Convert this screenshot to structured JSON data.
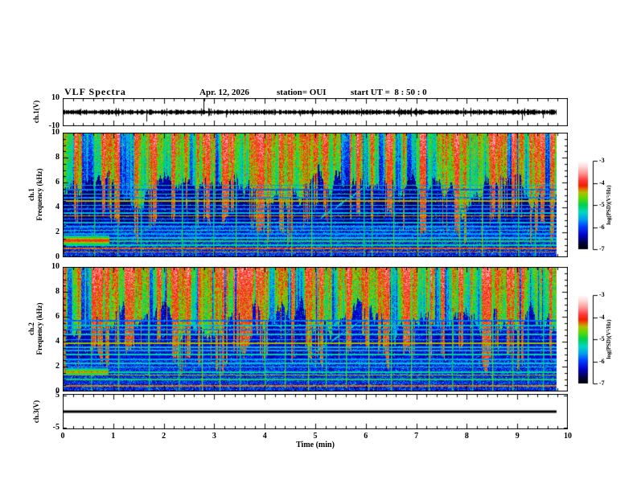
{
  "header": {
    "title": "VLF Spectra",
    "date": "Apr. 12, 2026",
    "station": "station= OUI",
    "start_ut": "start UT =  8 : 50 : 0"
  },
  "time_axis": {
    "label": "Time (min)",
    "ticks": [
      0,
      1,
      2,
      3,
      4,
      5,
      6,
      7,
      8,
      9,
      10
    ],
    "range": [
      0,
      10
    ],
    "minor_ticks_per_major": 5,
    "data_end_min": 9.78
  },
  "colorbar": {
    "label": "log(PSD)(V²/Hz)",
    "ticks": [
      -3,
      -4,
      -5,
      -6,
      -7
    ],
    "range": [
      -7,
      -3
    ],
    "stops": [
      [
        0,
        "#000000"
      ],
      [
        0.07,
        "#000040"
      ],
      [
        0.16,
        "#0000c8"
      ],
      [
        0.26,
        "#0040ff"
      ],
      [
        0.34,
        "#00a0f0"
      ],
      [
        0.42,
        "#00d8c0"
      ],
      [
        0.5,
        "#00d050"
      ],
      [
        0.58,
        "#60d800"
      ],
      [
        0.64,
        "#b0c000"
      ],
      [
        0.68,
        "#e07000"
      ],
      [
        0.72,
        "#f02000"
      ],
      [
        0.78,
        "#ff3838"
      ],
      [
        0.86,
        "#ff9898"
      ],
      [
        0.94,
        "#ffdcdc"
      ],
      [
        1,
        "#ffffff"
      ]
    ]
  },
  "chart_data": [
    {
      "id": "ch1",
      "type": "line",
      "ylabel": "ch.1(V)",
      "ylim": [
        -10,
        10
      ],
      "yticks": [
        10,
        -10
      ],
      "baseline_v": 0,
      "noise_amplitude_v": 1.2,
      "spikes": [
        {
          "t": 1.66,
          "v": -7
        },
        {
          "t": 2.79,
          "v": 10
        },
        {
          "t": 3.23,
          "v": -4
        },
        {
          "t": 4.7,
          "v": -3
        },
        {
          "t": 9.1,
          "v": -6
        },
        {
          "t": 9.5,
          "v": -4.5
        }
      ]
    },
    {
      "id": "spec1",
      "type": "heatmap",
      "ylabel": [
        "ch.1",
        "Frequency (kHz)"
      ],
      "ylim": [
        0,
        10
      ],
      "yticks": [
        10,
        8,
        6,
        4,
        2,
        0
      ],
      "zlabel": "log(PSD)(V²/Hz)",
      "zrange": [
        -7,
        -3
      ],
      "description": "Broadband VLF noise: strong green/yellow 6-10 kHz, quiet dark-blue 2.5-6 kHz with vertical sferic streaks, banded region below 2.5 kHz",
      "h_lines": [
        [
          0.45,
          -4.3
        ],
        [
          0.75,
          -4.25
        ],
        [
          1.0,
          -5.2
        ],
        [
          1.3,
          -5.0
        ],
        [
          1.6,
          -5.4
        ],
        [
          1.9,
          -5.6
        ],
        [
          2.2,
          -5.3
        ],
        [
          2.5,
          -5.6
        ],
        [
          2.8,
          -5.5
        ],
        [
          3.1,
          -5.7
        ],
        [
          3.35,
          -4.45
        ],
        [
          3.6,
          -5.5
        ],
        [
          3.9,
          -5.8
        ],
        [
          4.2,
          -5.6
        ],
        [
          4.55,
          -4.45
        ],
        [
          4.8,
          -5.7
        ],
        [
          5.1,
          -5.5
        ],
        [
          5.45,
          -5.8
        ],
        [
          5.8,
          -5.6
        ]
      ],
      "v_lines": [
        0.62,
        1.08,
        1.55,
        2.36,
        2.62,
        2.98,
        3.43,
        3.85,
        4.52,
        4.92,
        5.3,
        5.95,
        6.12,
        6.55,
        7.02,
        7.3,
        7.85,
        8.3,
        8.65,
        9.02,
        9.35
      ],
      "patch": {
        "t": [
          0,
          0.92
        ],
        "f": [
          1.0,
          1.75
        ],
        "peak": -3.9
      },
      "diagonal": {
        "t": [
          5.1,
          6.1
        ],
        "f": [
          3.2,
          6.0
        ]
      }
    },
    {
      "id": "spec2",
      "type": "heatmap",
      "ylabel": [
        "ch.2",
        "Frequency (kHz)"
      ],
      "ylim": [
        0,
        10
      ],
      "yticks": [
        10,
        8,
        6,
        4,
        2,
        0
      ],
      "zlabel": "log(PSD)(V²/Hz)",
      "zrange": [
        -7,
        -3
      ],
      "description": "Similar broadband VLF noise on channel 2 with narrowband tone near 1.5 kHz at start and rising whistler-like trace near 5 min",
      "h_lines": [
        [
          0.5,
          -4.3
        ],
        [
          1.0,
          -5.0
        ],
        [
          1.35,
          -4.5
        ],
        [
          1.6,
          -5.2
        ],
        [
          2.0,
          -5.5
        ],
        [
          2.3,
          -5.4
        ],
        [
          2.6,
          -5.6
        ],
        [
          3.0,
          -5.3
        ],
        [
          3.3,
          -5.6
        ],
        [
          3.6,
          -5.5
        ],
        [
          3.9,
          -4.5
        ],
        [
          4.2,
          -5.6
        ],
        [
          4.6,
          -5.4
        ],
        [
          5.0,
          -5.7
        ],
        [
          5.3,
          -5.5
        ],
        [
          5.7,
          -5.8
        ]
      ],
      "v_lines": [
        0.55,
        1.1,
        1.7,
        2.3,
        2.75,
        3.1,
        3.5,
        4.0,
        4.4,
        4.85,
        5.2,
        5.6,
        6.05,
        6.5,
        6.9,
        7.25,
        7.7,
        8.1,
        8.5,
        8.9,
        9.2,
        9.5
      ],
      "patch": {
        "t": [
          0,
          0.9
        ],
        "f": [
          1.3,
          1.9
        ],
        "peak": -4.2
      },
      "diagonal": {
        "t": [
          4.85,
          5.9
        ],
        "f": [
          2.8,
          5.7
        ]
      }
    },
    {
      "id": "ch3",
      "type": "line",
      "ylabel": "ch.3(V)",
      "ylim": [
        -5,
        5
      ],
      "yticks": [
        5,
        -5
      ],
      "baseline_v": 0,
      "flat": true,
      "spikes": []
    }
  ]
}
